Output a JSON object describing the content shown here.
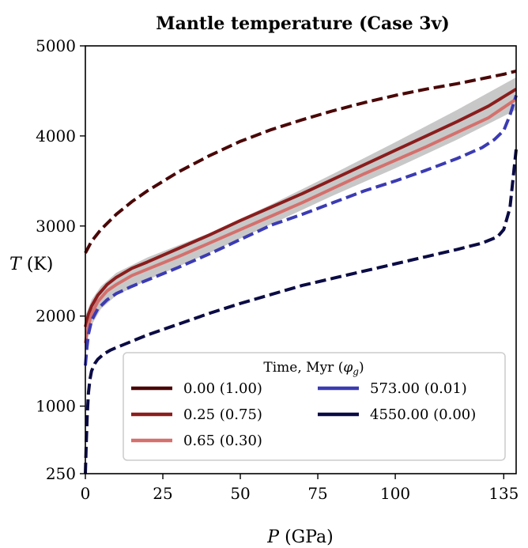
{
  "chart_data": {
    "type": "line",
    "title": "Mantle temperature (Case 3v)",
    "xlabel_var": "P",
    "xlabel_unit": "(GPa)",
    "ylabel_var": "T",
    "ylabel_unit": "(K)",
    "xlim": [
      0,
      139
    ],
    "ylim": [
      250,
      5000
    ],
    "xticks": [
      0,
      25,
      50,
      75,
      100,
      135
    ],
    "yticks": [
      250,
      1000,
      2000,
      3000,
      4000,
      5000
    ],
    "legend": {
      "title_text": "Time, Myr (",
      "title_var": "φ",
      "title_sub": "g",
      "title_close": ")",
      "placement": "lower-right"
    },
    "band": {
      "color": "#c8c8c8",
      "x": [
        0,
        2,
        5,
        10,
        20,
        40,
        60,
        80,
        100,
        120,
        139
      ],
      "upper": [
        2000,
        2180,
        2330,
        2480,
        2650,
        2920,
        3240,
        3580,
        3930,
        4290,
        4650
      ],
      "lower": [
        1680,
        1900,
        2080,
        2230,
        2400,
        2700,
        3020,
        3340,
        3640,
        3960,
        4290
      ]
    },
    "series": [
      {
        "name": "0.00 (1.00)",
        "color": "#4a0707",
        "dashed": true,
        "width": 4,
        "x": [
          0,
          2,
          5,
          10,
          15,
          20,
          30,
          40,
          50,
          60,
          70,
          80,
          90,
          100,
          110,
          120,
          130,
          135,
          139
        ],
        "y": [
          2700,
          2830,
          2960,
          3130,
          3270,
          3390,
          3600,
          3780,
          3940,
          4070,
          4180,
          4280,
          4370,
          4450,
          4520,
          4580,
          4650,
          4685,
          4720
        ]
      },
      {
        "name": "0.25 (0.75)",
        "color": "#8b1d1d",
        "dashed": false,
        "width": 4,
        "x": [
          0,
          1,
          2,
          4,
          7,
          10,
          15,
          20,
          30,
          40,
          50,
          60,
          70,
          80,
          90,
          100,
          110,
          120,
          130,
          139
        ],
        "y": [
          1880,
          2020,
          2110,
          2230,
          2350,
          2430,
          2530,
          2600,
          2750,
          2900,
          3060,
          3210,
          3360,
          3520,
          3680,
          3840,
          4000,
          4160,
          4330,
          4520
        ]
      },
      {
        "name": "0.65 (0.30)",
        "color": "#d4706d",
        "dashed": false,
        "width": 4,
        "x": [
          0,
          1,
          2,
          4,
          7,
          10,
          15,
          20,
          30,
          40,
          50,
          60,
          70,
          80,
          90,
          100,
          110,
          120,
          130,
          139
        ],
        "y": [
          1700,
          1900,
          2020,
          2160,
          2280,
          2350,
          2450,
          2520,
          2660,
          2810,
          2960,
          3110,
          3260,
          3420,
          3580,
          3730,
          3880,
          4040,
          4200,
          4410
        ]
      },
      {
        "name": "573.00 (0.01)",
        "color": "#3b3bb3",
        "dashed": true,
        "width": 4,
        "x": [
          0,
          0.5,
          1,
          2,
          4,
          7,
          10,
          15,
          20,
          30,
          40,
          50,
          55,
          60,
          70,
          80,
          90,
          100,
          110,
          120,
          128,
          132,
          135,
          137,
          139
        ],
        "y": [
          1450,
          1650,
          1800,
          1950,
          2080,
          2180,
          2250,
          2330,
          2400,
          2540,
          2690,
          2850,
          2930,
          3010,
          3130,
          3260,
          3390,
          3500,
          3620,
          3750,
          3870,
          3960,
          4060,
          4230,
          4450
        ]
      },
      {
        "name": "4550.00 (0.00)",
        "color": "#0b0b45",
        "dashed": true,
        "width": 4,
        "x": [
          0,
          0.3,
          0.6,
          1,
          1.5,
          2,
          3,
          4,
          6,
          8,
          10,
          15,
          20,
          30,
          40,
          50,
          60,
          70,
          80,
          90,
          100,
          110,
          120,
          128,
          133,
          135,
          137,
          139
        ],
        "y": [
          250,
          600,
          900,
          1150,
          1300,
          1390,
          1470,
          1520,
          1580,
          1620,
          1650,
          1720,
          1790,
          1910,
          2030,
          2140,
          2240,
          2340,
          2420,
          2500,
          2580,
          2660,
          2740,
          2810,
          2880,
          2960,
          3200,
          3850
        ]
      }
    ]
  }
}
